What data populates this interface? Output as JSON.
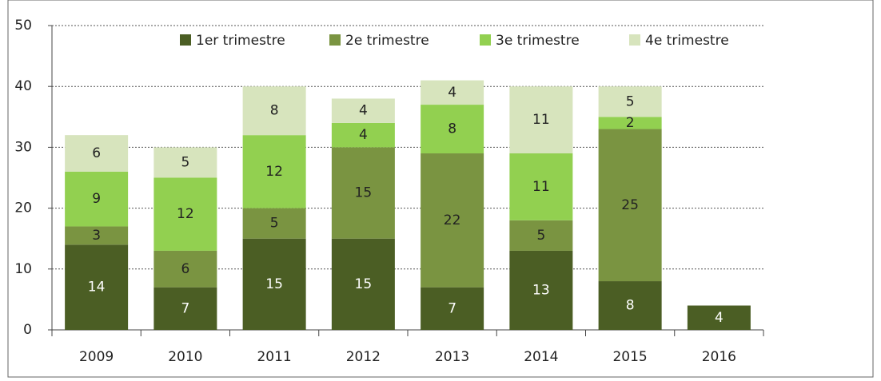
{
  "chart_data": {
    "type": "stacked_bar",
    "categories": [
      "2009",
      "2010",
      "2011",
      "2012",
      "2013",
      "2014",
      "2015",
      "2016"
    ],
    "series": [
      {
        "name": "1er trimestre",
        "color": "#4b5e24",
        "values": [
          14,
          7,
          15,
          15,
          7,
          13,
          8,
          4
        ]
      },
      {
        "name": "2e trimestre",
        "color": "#7a9441",
        "values": [
          3,
          6,
          5,
          15,
          22,
          5,
          25,
          null
        ]
      },
      {
        "name": "3e trimestre",
        "color": "#92d050",
        "values": [
          9,
          12,
          12,
          4,
          8,
          11,
          2,
          null
        ]
      },
      {
        "name": "4e trimestre",
        "color": "#d7e4bd",
        "values": [
          6,
          5,
          8,
          4,
          4,
          11,
          5,
          null
        ]
      }
    ],
    "ylim": [
      0,
      50
    ],
    "yticks": [
      0,
      10,
      20,
      30,
      40,
      50
    ],
    "grid": true,
    "legend": "top"
  }
}
